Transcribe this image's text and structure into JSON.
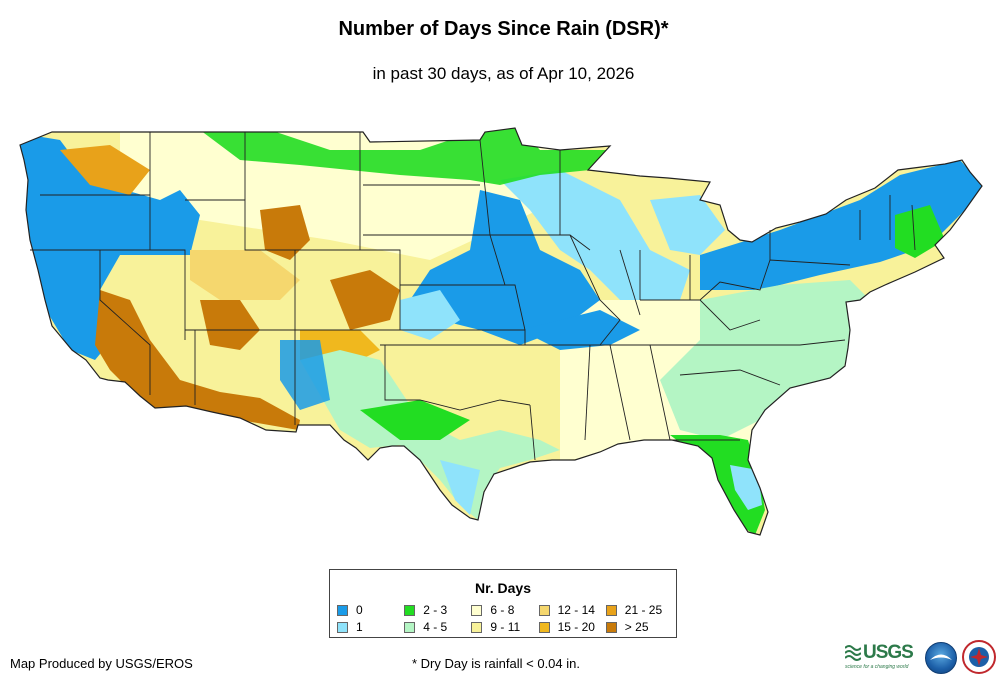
{
  "title": "Number of Days Since Rain (DSR)*",
  "subtitle": "in past 30 days, as of Apr 10, 2026",
  "legend": {
    "title": "Nr. Days",
    "items": [
      {
        "label": "0",
        "color": "#1a9be8"
      },
      {
        "label": "2 - 3",
        "color": "#22dd22"
      },
      {
        "label": "6 - 8",
        "color": "#ffffd0"
      },
      {
        "label": "12 - 14",
        "color": "#f5d76e"
      },
      {
        "label": "21 - 25",
        "color": "#e8a21a"
      },
      {
        "label": "1",
        "color": "#8fe3fb"
      },
      {
        "label": "4 - 5",
        "color": "#b4f5c4"
      },
      {
        "label": "9 - 11",
        "color": "#f8f29a"
      },
      {
        "label": "15 - 20",
        "color": "#f0b81e"
      },
      {
        "label": "> 25",
        "color": "#c87a0a"
      }
    ]
  },
  "footer": {
    "credit": "Map Produced by USGS/EROS",
    "note": "* Dry Day is rainfall < 0.04 in."
  },
  "logos": {
    "usgs": "USGS",
    "usgs_tagline": "science for a changing world"
  }
}
